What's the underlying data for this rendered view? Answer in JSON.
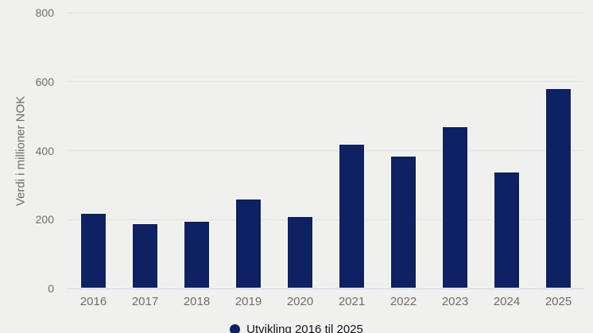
{
  "chart_data": {
    "type": "bar",
    "categories": [
      "2016",
      "2017",
      "2018",
      "2019",
      "2020",
      "2021",
      "2022",
      "2023",
      "2024",
      "2025"
    ],
    "values": [
      220,
      190,
      195,
      260,
      210,
      420,
      385,
      470,
      340,
      580
    ],
    "series_name": "Utvikling 2016 til 2025",
    "title": "",
    "xlabel": "",
    "ylabel": "Verdi i millioner NOK",
    "ylim": [
      0,
      800
    ],
    "yticks": [
      0,
      200,
      400,
      600,
      800
    ],
    "grid": true,
    "legend_position": "bottom-center",
    "colors": {
      "bar_fill": "#0d2163",
      "bar_stroke": "#fafaf8",
      "background": "#f0f1ef",
      "gridline": "#e2e3e1",
      "zero_line": "#ccd3ec",
      "tick_label": "#6d6d6d",
      "legend_text": "#16161f"
    }
  }
}
